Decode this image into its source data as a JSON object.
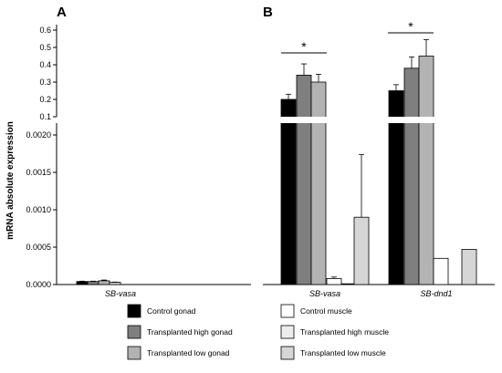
{
  "ylabel": "mRNA absolute expression",
  "colors": {
    "control_gonad": "#000000",
    "transplanted_high_gonad": "#7f7f7f",
    "transplanted_low_gonad": "#b3b3b3",
    "control_muscle": "#ffffff",
    "transplanted_high_muscle": "#ececec",
    "transplanted_low_muscle": "#d6d6d6"
  },
  "chart_data": [
    {
      "panel": "A",
      "type": "bar",
      "categories": [
        "SB-vasa"
      ],
      "axis_break": {
        "lower_range": [
          0,
          0.002
        ],
        "upper_range": [
          0.1,
          0.6
        ]
      },
      "lower_ticks": [
        "0.0000",
        "0.0005",
        "0.0010",
        "0.0015",
        "0.0020"
      ],
      "upper_ticks": [
        "0.1",
        "0.2",
        "0.3",
        "0.4",
        "0.5",
        "0.6"
      ],
      "series": [
        {
          "name": "Control gonad",
          "key": "control_gonad",
          "values": [
            4e-05
          ],
          "errors": [
            5e-06
          ]
        },
        {
          "name": "Transplanted high gonad",
          "key": "transplanted_high_gonad",
          "values": [
            4e-05
          ],
          "errors": [
            5e-06
          ]
        },
        {
          "name": "Transplanted low gonad",
          "key": "transplanted_low_gonad",
          "values": [
            5e-05
          ],
          "errors": [
            1e-05
          ]
        },
        {
          "name": "Transplanted low muscle",
          "key": "transplanted_low_muscle",
          "values": [
            3e-05
          ],
          "errors": [
            3e-06
          ]
        }
      ]
    },
    {
      "panel": "B",
      "type": "bar",
      "categories": [
        "SB-vasa",
        "SB-dnd1"
      ],
      "axis_break": {
        "lower_range": [
          0,
          0.002
        ],
        "upper_range": [
          0.1,
          0.6
        ]
      },
      "series": [
        {
          "name": "Control gonad",
          "key": "control_gonad",
          "values": [
            0.2,
            0.25
          ],
          "errors": [
            0.03,
            0.035
          ]
        },
        {
          "name": "Transplanted high gonad",
          "key": "transplanted_high_gonad",
          "values": [
            0.34,
            0.38
          ],
          "errors": [
            0.065,
            0.065
          ]
        },
        {
          "name": "Transplanted low gonad",
          "key": "transplanted_low_gonad",
          "values": [
            0.3,
            0.45
          ],
          "errors": [
            0.045,
            0.095
          ]
        },
        {
          "name": "Control muscle",
          "key": "control_muscle",
          "values": [
            8e-05,
            0.00035
          ],
          "errors": [
            2e-05,
            0
          ]
        },
        {
          "name": "Transplanted high muscle",
          "key": "transplanted_high_muscle",
          "values": [
            1e-05,
            0
          ],
          "errors": [
            0,
            0
          ]
        },
        {
          "name": "Transplanted low muscle",
          "key": "transplanted_low_muscle",
          "values": [
            0.0009,
            0.00047
          ],
          "errors": [
            0.00084,
            0
          ]
        }
      ],
      "significance": [
        {
          "category": "SB-vasa",
          "label": "*"
        },
        {
          "category": "SB-dnd1",
          "label": "*"
        }
      ]
    }
  ],
  "legend": {
    "placement": "bottom",
    "items": [
      {
        "label": "Control gonad",
        "key": "control_gonad"
      },
      {
        "label": "Transplanted high gonad",
        "key": "transplanted_high_gonad"
      },
      {
        "label": "Transplanted low gonad",
        "key": "transplanted_low_gonad"
      },
      {
        "label": "Control muscle",
        "key": "control_muscle"
      },
      {
        "label": "Transplanted high muscle",
        "key": "transplanted_high_muscle"
      },
      {
        "label": "Transplanted low muscle",
        "key": "transplanted_low_muscle"
      }
    ]
  }
}
